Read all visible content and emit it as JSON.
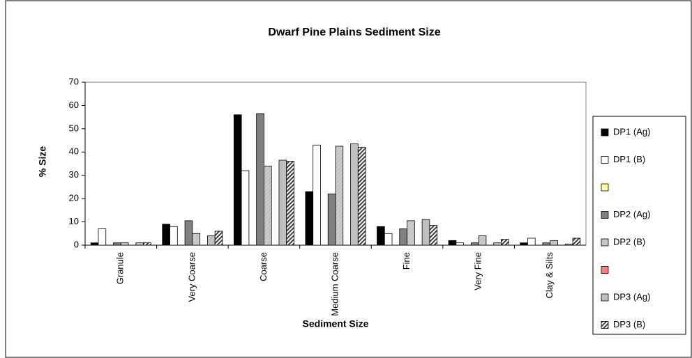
{
  "chart_data": {
    "type": "bar",
    "title": "Dwarf Pine Plains Sediment Size",
    "x_label": "Sediment Size",
    "y_label": "% Size",
    "categories": [
      "Granule",
      "Very Coarse",
      "Coarse",
      "Medium Coarse",
      "Fine",
      "Very Fine",
      "Clay & Silts"
    ],
    "ylim": [
      0,
      70
    ],
    "yticks": [
      0,
      10,
      20,
      30,
      40,
      50,
      60,
      70
    ],
    "grid": false,
    "legend": "right",
    "series": [
      {
        "name": "DP1 (Ag)",
        "color": "#000000",
        "hatch": false,
        "values": [
          1,
          9,
          56,
          23,
          8,
          2,
          1
        ]
      },
      {
        "name": "DP1 (B)",
        "color": "#ffffff",
        "hatch": false,
        "values": [
          7,
          8,
          32,
          43,
          5,
          1,
          3
        ]
      },
      {
        "name": null,
        "color": "#ffff99",
        "hatch": false,
        "values": [
          null,
          null,
          null,
          null,
          null,
          null,
          null
        ]
      },
      {
        "name": "DP2 (Ag)",
        "color": "#808080",
        "hatch": false,
        "values": [
          1,
          10.5,
          56.5,
          22,
          7,
          1,
          1
        ]
      },
      {
        "name": "DP2 (B)",
        "color": "#d0d0d0",
        "hatch": true,
        "values": [
          1,
          5,
          34,
          42.5,
          10.5,
          4,
          2
        ]
      },
      {
        "name": null,
        "color": "#ff8080",
        "hatch": false,
        "values": [
          null,
          null,
          null,
          null,
          null,
          null,
          null
        ]
      },
      {
        "name": "DP3 (Ag)",
        "color": "#c0c0c0",
        "hatch": false,
        "values": [
          1,
          4,
          36.5,
          43.5,
          11,
          1,
          0.5
        ]
      },
      {
        "name": "DP3 (B)",
        "color": "#404040",
        "hatch": true,
        "values": [
          1,
          6,
          36,
          42,
          8.5,
          2.5,
          3
        ]
      }
    ]
  }
}
